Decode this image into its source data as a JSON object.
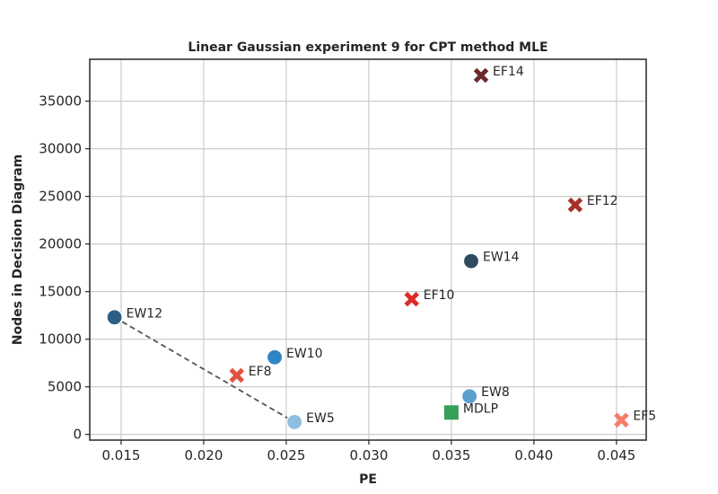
{
  "chart_data": {
    "type": "scatter",
    "title": "Linear Gaussian experiment 9 for CPT method MLE",
    "xlabel": "PE",
    "ylabel": "Nodes in Decision Diagram",
    "xlim": [
      0.0131,
      0.0468
    ],
    "ylim": [
      -600,
      39400
    ],
    "xticks": [
      0.015,
      0.02,
      0.025,
      0.03,
      0.035,
      0.04,
      0.045
    ],
    "xtick_labels": [
      "0.015",
      "0.020",
      "0.025",
      "0.030",
      "0.035",
      "0.040",
      "0.045"
    ],
    "yticks": [
      0,
      5000,
      10000,
      15000,
      20000,
      25000,
      30000,
      35000
    ],
    "ytick_labels": [
      "0",
      "5000",
      "10000",
      "15000",
      "20000",
      "25000",
      "30000",
      "35000"
    ],
    "grid": true,
    "points": [
      {
        "label": "EF14",
        "x": 0.0368,
        "y": 37700,
        "marker": "x",
        "color": "#6b2a2a"
      },
      {
        "label": "EF12",
        "x": 0.0425,
        "y": 24100,
        "marker": "x",
        "color": "#a8302a"
      },
      {
        "label": "EW14",
        "x": 0.0362,
        "y": 18200,
        "marker": "circle",
        "color": "#2f4b5f"
      },
      {
        "label": "EF10",
        "x": 0.0326,
        "y": 14200,
        "marker": "x",
        "color": "#dc2a26"
      },
      {
        "label": "EW12",
        "x": 0.0146,
        "y": 12300,
        "marker": "circle",
        "color": "#2c5f86"
      },
      {
        "label": "EW10",
        "x": 0.0243,
        "y": 8100,
        "marker": "circle",
        "color": "#2f85c2"
      },
      {
        "label": "EF8",
        "x": 0.022,
        "y": 6200,
        "marker": "x",
        "color": "#e3513f"
      },
      {
        "label": "EW8",
        "x": 0.0361,
        "y": 4000,
        "marker": "circle",
        "color": "#5ba0cf"
      },
      {
        "label": "MDLP",
        "x": 0.035,
        "y": 2300,
        "marker": "square",
        "color": "#36a05a"
      },
      {
        "label": "EF5",
        "x": 0.0453,
        "y": 1500,
        "marker": "x",
        "color": "#f47c68"
      },
      {
        "label": "EW5",
        "x": 0.0255,
        "y": 1300,
        "marker": "circle",
        "color": "#8ebde0"
      }
    ],
    "connector": {
      "from": "EW12",
      "to": "EW5",
      "style": "dashed",
      "color": "#555555"
    }
  }
}
